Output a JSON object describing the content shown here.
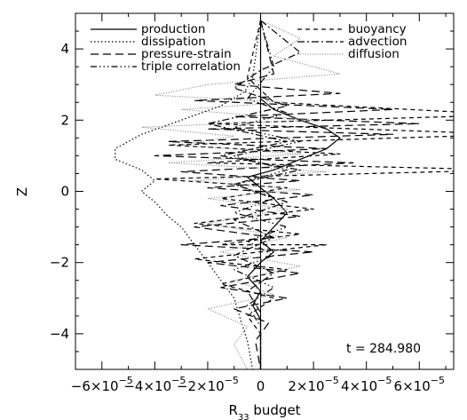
{
  "chart_data": {
    "type": "line",
    "xlabel": "R33 budget",
    "xlabel_main": "R",
    "xlabel_sub": "33",
    "xlabel_rest": " budget",
    "ylabel": "Z",
    "xlim": [
      -7e-05,
      7.3e-05
    ],
    "ylim": [
      -5.0,
      5.0
    ],
    "x_ticks": [
      {
        "value": -6e-05,
        "base": "−6×10",
        "exp": "−5"
      },
      {
        "value": -4e-05,
        "base": "−4×10",
        "exp": "−5"
      },
      {
        "value": -2e-05,
        "base": "−2×10",
        "exp": "−5"
      },
      {
        "value": 0,
        "base": "0",
        "exp": ""
      },
      {
        "value": 2e-05,
        "base": "2×10",
        "exp": "−5"
      },
      {
        "value": 4e-05,
        "base": "4×10",
        "exp": "−5"
      },
      {
        "value": 6e-05,
        "base": "6×10",
        "exp": "−5"
      }
    ],
    "y_ticks": [
      {
        "value": -4,
        "label": "−4"
      },
      {
        "value": -2,
        "label": "−2"
      },
      {
        "value": 0,
        "label": "0"
      },
      {
        "value": 2,
        "label": "2"
      },
      {
        "value": 4,
        "label": "4"
      }
    ],
    "annotation": "t = 284.980",
    "legend_placement": "top",
    "series": [
      {
        "name": "production",
        "dash": "",
        "points": [
          [
            0.0,
            4.8
          ],
          [
            0.0,
            3.0
          ],
          [
            0.0,
            2.6
          ],
          [
            5e-06,
            2.3
          ],
          [
            1.5e-05,
            2.0
          ],
          [
            2.5e-05,
            1.75
          ],
          [
            3e-05,
            1.5
          ],
          [
            2.5e-05,
            1.2
          ],
          [
            1.5e-05,
            0.9
          ],
          [
            5e-06,
            0.6
          ],
          [
            -5e-06,
            0.4
          ],
          [
            0.0,
            0.1
          ],
          [
            5e-06,
            -0.2
          ],
          [
            1e-05,
            -0.6
          ],
          [
            5e-06,
            -1.0
          ],
          [
            0.0,
            -1.4
          ],
          [
            5e-06,
            -1.7
          ],
          [
            0.0,
            -2.0
          ],
          [
            -5e-06,
            -2.4
          ],
          [
            0.0,
            -2.8
          ],
          [
            -3e-06,
            -3.2
          ],
          [
            0.0,
            -3.6
          ],
          [
            0.0,
            -4.2
          ],
          [
            0.0,
            -5.0
          ]
        ]
      },
      {
        "name": "dissipation",
        "dash": "1.5,2.5",
        "points": [
          [
            0.0,
            4.8
          ],
          [
            -3e-06,
            3.2
          ],
          [
            -6e-06,
            2.8
          ],
          [
            -1.5e-05,
            2.4
          ],
          [
            -3e-05,
            2.0
          ],
          [
            -4.5e-05,
            1.6
          ],
          [
            -5.5e-05,
            1.2
          ],
          [
            -5.5e-05,
            0.9
          ],
          [
            -4.5e-05,
            0.6
          ],
          [
            -4e-05,
            0.3
          ],
          [
            -4.5e-05,
            0.0
          ],
          [
            -4e-05,
            -0.3
          ],
          [
            -3.5e-05,
            -0.7
          ],
          [
            -3e-05,
            -1.0
          ],
          [
            -2.5e-05,
            -1.5
          ],
          [
            -2e-05,
            -2.0
          ],
          [
            -1.5e-05,
            -2.5
          ],
          [
            -1e-05,
            -3.0
          ],
          [
            -8e-06,
            -3.5
          ],
          [
            -5e-06,
            -4.2
          ],
          [
            -3e-06,
            -5.0
          ]
        ]
      },
      {
        "name": "pressure-strain",
        "dash": "9,5",
        "points": [
          [
            0.0,
            4.8
          ],
          [
            5e-06,
            3.3
          ],
          [
            -1e-05,
            3.0
          ],
          [
            3e-05,
            2.75
          ],
          [
            -2.5e-05,
            2.55
          ],
          [
            5e-05,
            2.3
          ],
          [
            -1e-05,
            2.1
          ],
          [
            6e-05,
            1.9
          ],
          [
            -2e-05,
            1.75
          ],
          [
            5e-05,
            1.6
          ],
          [
            -3.5e-05,
            1.4
          ],
          [
            2.5e-05,
            1.2
          ],
          [
            -4e-05,
            1.0
          ],
          [
            3.5e-05,
            0.8
          ],
          [
            -3e-05,
            0.55
          ],
          [
            1.5e-05,
            0.3
          ],
          [
            -2e-05,
            0.1
          ],
          [
            2e-05,
            -0.1
          ],
          [
            -1.5e-05,
            -0.4
          ],
          [
            1.5e-05,
            -0.7
          ],
          [
            -2.5e-05,
            -1.0
          ],
          [
            5e-06,
            -1.3
          ],
          [
            -3e-05,
            -1.5
          ],
          [
            2e-05,
            -1.7
          ],
          [
            -2e-05,
            -2.0
          ],
          [
            1.5e-05,
            -2.3
          ],
          [
            -1.5e-05,
            -2.7
          ],
          [
            1e-05,
            -3.0
          ],
          [
            -1e-05,
            -3.3
          ],
          [
            3e-06,
            -3.7
          ],
          [
            -2e-06,
            -4.2
          ],
          [
            0.0,
            -5.0
          ]
        ]
      },
      {
        "name": "triple correlation",
        "dash": "7,3,1.5,3,1.5,3,1.5,3",
        "points": [
          [
            0.0,
            4.8
          ],
          [
            5e-06,
            3.5
          ],
          [
            -5e-06,
            2.6
          ],
          [
            1e-05,
            2.2
          ],
          [
            -1e-05,
            1.8
          ],
          [
            1.5e-05,
            1.4
          ],
          [
            -1e-05,
            1.0
          ],
          [
            1e-05,
            0.6
          ],
          [
            -1e-05,
            0.2
          ],
          [
            5e-06,
            -0.2
          ],
          [
            -1e-05,
            -0.6
          ],
          [
            1e-05,
            -1.0
          ],
          [
            -5e-06,
            -1.4
          ],
          [
            5e-06,
            -1.8
          ],
          [
            -1e-05,
            -2.2
          ],
          [
            5e-06,
            -2.7
          ],
          [
            -5e-06,
            -3.2
          ],
          [
            0.0,
            -3.8
          ],
          [
            0.0,
            -5.0
          ]
        ]
      },
      {
        "name": "buoyancy",
        "dash": "5,4",
        "points": [
          [
            0.0,
            4.8
          ],
          [
            -5e-06,
            3.2
          ],
          [
            5e-06,
            2.5
          ],
          [
            9.5e-05,
            2.15
          ],
          [
            -2e-05,
            1.9
          ],
          [
            9.5e-05,
            1.6
          ],
          [
            -3.5e-05,
            1.3
          ],
          [
            3e-05,
            1.05
          ],
          [
            -2e-05,
            0.8
          ],
          [
            9.5e-05,
            0.6
          ],
          [
            -4e-05,
            0.35
          ],
          [
            1e-05,
            0.1
          ],
          [
            -1.5e-05,
            -0.2
          ],
          [
            2e-05,
            -0.5
          ],
          [
            -2.5e-05,
            -0.9
          ],
          [
            1.5e-05,
            -1.2
          ],
          [
            -1.5e-05,
            -1.5
          ],
          [
            2.5e-05,
            -1.5
          ],
          [
            -2.5e-05,
            -1.9
          ],
          [
            1e-05,
            -2.2
          ],
          [
            -1.5e-05,
            -2.6
          ],
          [
            5e-06,
            -3.0
          ],
          [
            -5e-06,
            -3.5
          ],
          [
            0.0,
            -4.0
          ],
          [
            0.0,
            -5.0
          ]
        ]
      },
      {
        "name": "advection",
        "dash": "8,3,2,3",
        "points": [
          [
            0.0,
            4.8
          ],
          [
            1.5e-05,
            3.9
          ],
          [
            0.0,
            3.4
          ],
          [
            -1e-05,
            2.9
          ],
          [
            1e-05,
            2.4
          ],
          [
            -2e-05,
            1.9
          ],
          [
            1e-05,
            1.4
          ],
          [
            -1.5e-05,
            1.0
          ],
          [
            1.5e-05,
            0.6
          ],
          [
            -1e-05,
            0.2
          ],
          [
            1e-05,
            -0.3
          ],
          [
            -1e-05,
            -0.8
          ],
          [
            5e-06,
            -1.3
          ],
          [
            -1e-05,
            -1.8
          ],
          [
            5e-06,
            -2.3
          ],
          [
            -5e-06,
            -2.8
          ],
          [
            0.0,
            -3.4
          ],
          [
            0.0,
            -5.0
          ]
        ]
      },
      {
        "name": "diffusion",
        "dash": "1,1.8",
        "stroke": "#888888",
        "points": [
          [
            0.0,
            4.8
          ],
          [
            1.5e-05,
            4.3
          ],
          [
            5e-06,
            3.8
          ],
          [
            3e-05,
            3.3
          ],
          [
            -2e-05,
            3.0
          ],
          [
            -4e-05,
            2.7
          ],
          [
            1e-05,
            2.5
          ],
          [
            -3e-05,
            2.3
          ],
          [
            2e-05,
            2.0
          ],
          [
            -4.5e-05,
            1.8
          ],
          [
            -1e-05,
            1.55
          ],
          [
            -3e-05,
            1.3
          ],
          [
            1.5e-05,
            1.05
          ],
          [
            -3.5e-05,
            0.8
          ],
          [
            2.5e-05,
            0.55
          ],
          [
            -2.5e-05,
            0.3
          ],
          [
            1.5e-05,
            0.05
          ],
          [
            -2e-05,
            -0.2
          ],
          [
            1e-05,
            -0.5
          ],
          [
            -2e-05,
            -0.9
          ],
          [
            1e-05,
            -1.3
          ],
          [
            -1.5e-05,
            -1.7
          ],
          [
            1.5e-05,
            -2.1
          ],
          [
            -1e-05,
            -2.5
          ],
          [
            5e-06,
            -2.9
          ],
          [
            -2e-05,
            -3.3
          ],
          [
            -5e-06,
            -3.8
          ],
          [
            -1e-05,
            -4.3
          ],
          [
            -5e-06,
            -5.0
          ]
        ]
      }
    ]
  }
}
